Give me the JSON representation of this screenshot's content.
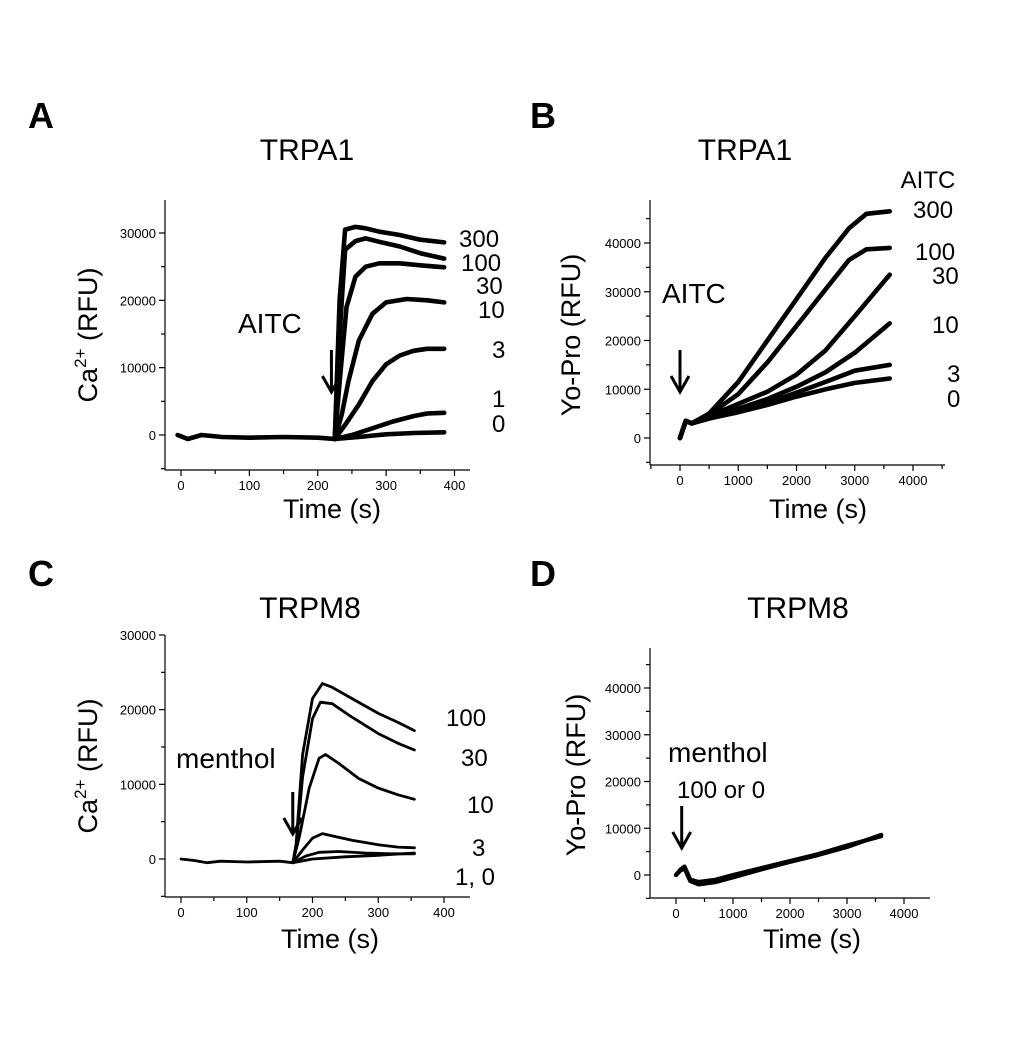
{
  "chart_data": [
    {
      "panel": "A",
      "type": "line",
      "title": "TRPA1",
      "xlabel": "Time (s)",
      "ylabel": "Ca2+ (RFU)",
      "ylabel_base": "Ca",
      "ylabel_sup": "2+",
      "ylabel_rest": " (RFU)",
      "xlim": [
        -15,
        420
      ],
      "ylim": [
        -5000,
        35000
      ],
      "xticks": [
        0,
        100,
        200,
        300,
        400
      ],
      "yticks": [
        0,
        10000,
        20000,
        30000
      ],
      "annotation": "AITC",
      "arrow_x": 220,
      "series": [
        {
          "name": "300",
          "x": [
            -5,
            10,
            30,
            60,
            100,
            150,
            200,
            225,
            232,
            240,
            255,
            270,
            290,
            320,
            350,
            385
          ],
          "y": [
            0,
            -600,
            0,
            -300,
            -400,
            -300,
            -400,
            -600,
            20000,
            30500,
            30900,
            30700,
            30200,
            29700,
            29000,
            28600
          ]
        },
        {
          "name": "100",
          "x": [
            225,
            232,
            240,
            255,
            270,
            290,
            320,
            350,
            385
          ],
          "y": [
            -600,
            15000,
            27500,
            28800,
            29200,
            28700,
            28000,
            27000,
            26200
          ]
        },
        {
          "name": "30",
          "x": [
            225,
            233,
            242,
            255,
            270,
            290,
            320,
            350,
            385
          ],
          "y": [
            -600,
            9000,
            19000,
            23500,
            25000,
            25500,
            25500,
            25200,
            24900
          ]
        },
        {
          "name": "10",
          "x": [
            225,
            235,
            245,
            260,
            280,
            300,
            330,
            360,
            385
          ],
          "y": [
            -600,
            3000,
            8000,
            14000,
            18000,
            19700,
            20200,
            20000,
            19700
          ]
        },
        {
          "name": "3",
          "x": [
            225,
            240,
            260,
            280,
            300,
            320,
            340,
            360,
            385
          ],
          "y": [
            -600,
            1500,
            4500,
            8000,
            10500,
            11800,
            12500,
            12800,
            12800
          ]
        },
        {
          "name": "1",
          "x": [
            225,
            250,
            280,
            310,
            340,
            360,
            385
          ],
          "y": [
            -600,
            0,
            1000,
            2000,
            2800,
            3200,
            3300
          ]
        },
        {
          "name": "0",
          "x": [
            225,
            260,
            300,
            340,
            385
          ],
          "y": [
            -600,
            -300,
            100,
            300,
            400
          ]
        }
      ]
    },
    {
      "panel": "B",
      "type": "line",
      "title": "TRPA1",
      "xlabel": "Time (s)",
      "ylabel": "Yo-Pro (RFU)",
      "xlim": [
        -600,
        4600
      ],
      "ylim": [
        -5000,
        48000
      ],
      "xticks": [
        0,
        1000,
        2000,
        3000,
        4000
      ],
      "yticks": [
        0,
        10000,
        20000,
        30000,
        40000
      ],
      "annotation": "AITC",
      "legend_heading": "AITC",
      "arrow_x": 0,
      "series": [
        {
          "name": "300",
          "x": [
            0,
            100,
            200,
            500,
            1000,
            1500,
            2000,
            2500,
            2900,
            3200,
            3600
          ],
          "y": [
            0,
            3500,
            3000,
            5000,
            11500,
            20000,
            28500,
            37000,
            43000,
            46000,
            46500
          ]
        },
        {
          "name": "100",
          "x": [
            0,
            100,
            200,
            500,
            1000,
            1500,
            2000,
            2500,
            2900,
            3200,
            3600
          ],
          "y": [
            0,
            3500,
            3000,
            4800,
            9000,
            15500,
            23000,
            30500,
            36500,
            38700,
            39000
          ]
        },
        {
          "name": "30",
          "x": [
            0,
            100,
            200,
            500,
            1000,
            1500,
            2000,
            2500,
            3000,
            3600
          ],
          "y": [
            0,
            3500,
            3000,
            4500,
            7000,
            9500,
            13000,
            18000,
            25000,
            33500
          ]
        },
        {
          "name": "10",
          "x": [
            0,
            100,
            200,
            500,
            1000,
            1500,
            2000,
            2500,
            3000,
            3600
          ],
          "y": [
            0,
            3500,
            3000,
            4200,
            6000,
            8000,
            10500,
            13500,
            17500,
            23500
          ]
        },
        {
          "name": "3",
          "x": [
            0,
            100,
            200,
            500,
            1000,
            1500,
            2000,
            2500,
            3000,
            3600
          ],
          "y": [
            0,
            3500,
            3000,
            4000,
            5500,
            7200,
            9300,
            11500,
            13800,
            15000
          ]
        },
        {
          "name": "0",
          "x": [
            0,
            100,
            200,
            500,
            1000,
            1500,
            2000,
            2500,
            3000,
            3600
          ],
          "y": [
            0,
            3500,
            3000,
            4000,
            5300,
            6800,
            8500,
            10000,
            11300,
            12200
          ]
        }
      ]
    },
    {
      "panel": "C",
      "type": "line",
      "title": "TRPM8",
      "xlabel": "Time (s)",
      "ylabel": "Ca2+ (RFU)",
      "ylabel_base": "Ca",
      "ylabel_sup": "2+",
      "ylabel_rest": " (RFU)",
      "xlim": [
        -15,
        420
      ],
      "ylim": [
        -5000,
        30000
      ],
      "xticks": [
        0,
        100,
        200,
        300,
        400
      ],
      "yticks": [
        0,
        10000,
        20000,
        30000
      ],
      "annotation": "menthol",
      "arrow_x": 170,
      "series": [
        {
          "name": "100",
          "x": [
            0,
            20,
            40,
            60,
            100,
            150,
            170,
            175,
            185,
            200,
            215,
            230,
            260,
            300,
            330,
            355
          ],
          "y": [
            0,
            -200,
            -500,
            -300,
            -400,
            -300,
            -500,
            2000,
            14000,
            21500,
            23500,
            23000,
            21500,
            19500,
            18300,
            17200
          ]
        },
        {
          "name": "30",
          "x": [
            170,
            175,
            185,
            200,
            212,
            230,
            260,
            300,
            330,
            355
          ],
          "y": [
            -500,
            1500,
            11000,
            18800,
            21000,
            20800,
            19000,
            16800,
            15500,
            14600
          ]
        },
        {
          "name": "10",
          "x": [
            170,
            180,
            195,
            210,
            220,
            240,
            270,
            300,
            330,
            355
          ],
          "y": [
            -500,
            3000,
            9500,
            13500,
            14000,
            12800,
            10800,
            9500,
            8600,
            8000
          ]
        },
        {
          "name": "3",
          "x": [
            170,
            185,
            200,
            215,
            230,
            260,
            300,
            330,
            355
          ],
          "y": [
            -500,
            1200,
            2800,
            3400,
            3100,
            2500,
            1900,
            1600,
            1500
          ]
        },
        {
          "name": "1, 0",
          "x": [
            170,
            190,
            210,
            240,
            280,
            320,
            355
          ],
          "y": [
            -500,
            400,
            900,
            1000,
            800,
            700,
            700
          ]
        },
        {
          "name": "",
          "x": [
            170,
            200,
            250,
            300,
            355
          ],
          "y": [
            -500,
            0,
            300,
            500,
            800
          ]
        }
      ]
    },
    {
      "panel": "D",
      "type": "line",
      "title": "TRPM8",
      "xlabel": "Time (s)",
      "ylabel": "Yo-Pro (RFU)",
      "xlim": [
        -600,
        4600
      ],
      "ylim": [
        -5000,
        49000
      ],
      "xticks": [
        0,
        1000,
        2000,
        3000,
        4000
      ],
      "yticks": [
        0,
        10000,
        20000,
        30000,
        40000
      ],
      "annotation": "menthol",
      "annotation_sub": "100 or 0",
      "arrow_x": 100,
      "series": [
        {
          "name": "100",
          "x": [
            0,
            80,
            150,
            250,
            400,
            700,
            1000,
            1500,
            2000,
            2500,
            3000,
            3600
          ],
          "y": [
            0,
            1200,
            1800,
            -1000,
            -1500,
            -1000,
            0,
            1500,
            3000,
            4500,
            6300,
            8300
          ]
        },
        {
          "name": "0",
          "x": [
            0,
            80,
            150,
            250,
            400,
            700,
            1000,
            1500,
            2000,
            2500,
            3000,
            3600
          ],
          "y": [
            0,
            1000,
            1400,
            -1300,
            -2000,
            -1500,
            -500,
            1200,
            2800,
            4300,
            6000,
            8600
          ]
        }
      ]
    }
  ]
}
